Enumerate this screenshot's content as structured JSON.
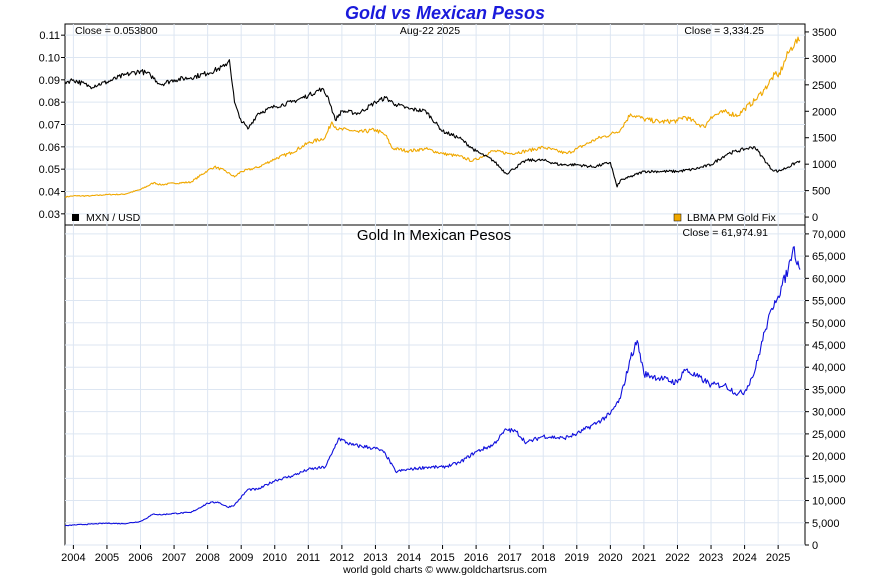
{
  "title": "Gold vs Mexican Pesos",
  "footer": "world gold charts © www.goldchartsrus.com",
  "date_label": "Aug-22  2025",
  "colors": {
    "mxn": "#000000",
    "gold": "#f0a800",
    "gold_mxn": "#1010dd",
    "grid": "#dde6f2",
    "title": "#1a1adb"
  },
  "top_panel": {
    "close_left": "Close = 0.053800",
    "close_right": "Close = 3,334.25",
    "legend_left": "MXN / USD",
    "legend_right": "LBMA PM Gold Fix"
  },
  "bottom_panel": {
    "subtitle": "Gold In Mexican Pesos",
    "close_right": "Close = 61,974.91"
  },
  "chart_data": [
    {
      "type": "line",
      "title": "Gold vs Mexican Pesos",
      "xlim": [
        2003.75,
        2025.8
      ],
      "x_ticks": [
        2004,
        2005,
        2006,
        2007,
        2008,
        2009,
        2010,
        2011,
        2012,
        2013,
        2014,
        2015,
        2016,
        2017,
        2018,
        2019,
        2020,
        2021,
        2022,
        2023,
        2024,
        2025
      ],
      "x_tick_labels": [
        "2004",
        "2005",
        "2006",
        "2007",
        "2008",
        "2009",
        "2010",
        "2011",
        "2012",
        "2013",
        "2014",
        "2015",
        "2016",
        "2017",
        "2018",
        "2019",
        "2020",
        "2021",
        "2022",
        "2023",
        "2024",
        "2025"
      ],
      "y_left": {
        "lim": [
          0.025,
          0.115
        ],
        "ticks": [
          0.03,
          0.04,
          0.05,
          0.06,
          0.07,
          0.08,
          0.09,
          0.1,
          0.11
        ],
        "tick_labels": [
          "0.03",
          "0.04",
          "0.05",
          "0.06",
          "0.07",
          "0.08",
          "0.09",
          "0.10",
          "0.11"
        ]
      },
      "y_right": {
        "lim": [
          -150,
          3650
        ],
        "ticks": [
          0,
          500,
          1000,
          1500,
          2000,
          2500,
          3000,
          3500
        ],
        "tick_labels": [
          "0",
          "500",
          "1000",
          "1500",
          "2000",
          "2500",
          "3000",
          "3500"
        ]
      },
      "series": [
        {
          "name": "MXN / USD",
          "axis": "left",
          "x": [
            2003.75,
            2004.0,
            2004.5,
            2005.0,
            2005.5,
            2006.0,
            2006.3,
            2006.6,
            2007.0,
            2007.5,
            2008.0,
            2008.5,
            2008.65,
            2008.8,
            2008.95,
            2009.2,
            2009.5,
            2010.0,
            2010.5,
            2011.0,
            2011.4,
            2011.6,
            2011.8,
            2012.0,
            2012.5,
            2013.0,
            2013.3,
            2013.6,
            2014.0,
            2014.5,
            2015.0,
            2015.5,
            2016.0,
            2016.5,
            2016.9,
            2017.1,
            2017.5,
            2018.0,
            2018.5,
            2019.0,
            2019.5,
            2020.0,
            2020.2,
            2020.3,
            2020.5,
            2021.0,
            2021.5,
            2022.0,
            2022.5,
            2023.0,
            2023.5,
            2024.0,
            2024.3,
            2024.5,
            2024.8,
            2025.0,
            2025.3,
            2025.65
          ],
          "values": [
            0.089,
            0.09,
            0.087,
            0.089,
            0.092,
            0.094,
            0.092,
            0.088,
            0.09,
            0.091,
            0.093,
            0.096,
            0.099,
            0.08,
            0.073,
            0.068,
            0.075,
            0.078,
            0.08,
            0.083,
            0.086,
            0.082,
            0.072,
            0.076,
            0.075,
            0.08,
            0.082,
            0.079,
            0.077,
            0.076,
            0.067,
            0.064,
            0.058,
            0.054,
            0.048,
            0.05,
            0.054,
            0.054,
            0.052,
            0.052,
            0.051,
            0.053,
            0.042,
            0.045,
            0.046,
            0.049,
            0.049,
            0.049,
            0.05,
            0.052,
            0.057,
            0.059,
            0.06,
            0.056,
            0.05,
            0.049,
            0.051,
            0.0538
          ]
        },
        {
          "name": "LBMA PM Gold Fix",
          "axis": "right",
          "x": [
            2003.75,
            2004.0,
            2004.5,
            2005.0,
            2005.5,
            2006.0,
            2006.4,
            2006.6,
            2007.0,
            2007.5,
            2008.0,
            2008.2,
            2008.5,
            2008.8,
            2009.0,
            2009.5,
            2010.0,
            2010.5,
            2011.0,
            2011.5,
            2011.7,
            2011.9,
            2012.2,
            2012.5,
            2013.0,
            2013.3,
            2013.5,
            2014.0,
            2014.5,
            2015.0,
            2015.5,
            2015.9,
            2016.5,
            2017.0,
            2017.5,
            2018.0,
            2018.7,
            2019.0,
            2019.6,
            2020.0,
            2020.3,
            2020.6,
            2021.0,
            2021.5,
            2022.0,
            2022.2,
            2022.8,
            2023.0,
            2023.4,
            2023.8,
            2024.0,
            2024.3,
            2024.6,
            2024.9,
            2025.0,
            2025.3,
            2025.5,
            2025.65
          ],
          "values": [
            380,
            400,
            400,
            425,
            430,
            520,
            650,
            610,
            640,
            660,
            880,
            950,
            880,
            760,
            860,
            940,
            1100,
            1220,
            1400,
            1500,
            1800,
            1650,
            1650,
            1600,
            1650,
            1550,
            1300,
            1250,
            1290,
            1200,
            1150,
            1060,
            1250,
            1200,
            1250,
            1320,
            1200,
            1290,
            1480,
            1560,
            1650,
            1950,
            1850,
            1800,
            1820,
            1900,
            1700,
            1900,
            1990,
            1920,
            2050,
            2200,
            2420,
            2700,
            2650,
            3100,
            3300,
            3334.25
          ]
        }
      ]
    },
    {
      "type": "line",
      "title": "Gold In Mexican Pesos",
      "xlim": [
        2003.75,
        2025.8
      ],
      "y_right": {
        "lim": [
          0,
          72000
        ],
        "ticks": [
          0,
          5000,
          10000,
          15000,
          20000,
          25000,
          30000,
          35000,
          40000,
          45000,
          50000,
          55000,
          60000,
          65000,
          70000
        ],
        "tick_labels": [
          "0",
          "5,000",
          "10,000",
          "15,000",
          "20,000",
          "25,000",
          "30,000",
          "35,000",
          "40,000",
          "45,000",
          "50,000",
          "55,000",
          "60,000",
          "65,000",
          "70,000"
        ]
      },
      "series": [
        {
          "name": "Gold In Mexican Pesos",
          "axis": "right",
          "x": [
            2003.75,
            2004.0,
            2004.5,
            2005.0,
            2005.5,
            2006.0,
            2006.4,
            2006.6,
            2007.0,
            2007.5,
            2008.0,
            2008.3,
            2008.6,
            2008.8,
            2009.2,
            2009.5,
            2010.0,
            2010.5,
            2011.0,
            2011.5,
            2011.7,
            2011.9,
            2012.3,
            2012.8,
            2013.1,
            2013.3,
            2013.6,
            2014.0,
            2014.5,
            2015.0,
            2015.5,
            2016.0,
            2016.5,
            2016.9,
            2017.2,
            2017.5,
            2018.0,
            2018.6,
            2019.0,
            2019.6,
            2020.0,
            2020.3,
            2020.6,
            2020.8,
            2021.0,
            2021.5,
            2022.0,
            2022.2,
            2022.8,
            2023.0,
            2023.4,
            2023.8,
            2024.0,
            2024.3,
            2024.6,
            2024.9,
            2025.0,
            2025.3,
            2025.45,
            2025.65
          ],
          "values": [
            4300,
            4500,
            4700,
            4900,
            4800,
            5300,
            7000,
            6800,
            7100,
            7300,
            9400,
            9700,
            8500,
            9000,
            12500,
            12500,
            14500,
            15500,
            17000,
            17500,
            20500,
            24000,
            22500,
            22000,
            21500,
            20500,
            16500,
            17000,
            17500,
            17500,
            18500,
            21000,
            22500,
            26000,
            25500,
            23000,
            24500,
            24000,
            25000,
            27500,
            29500,
            33000,
            42000,
            46000,
            38500,
            37500,
            36500,
            39500,
            37000,
            36000,
            36000,
            34000,
            34500,
            39000,
            48000,
            55000,
            56000,
            62000,
            67000,
            61974.91
          ]
        }
      ]
    }
  ]
}
